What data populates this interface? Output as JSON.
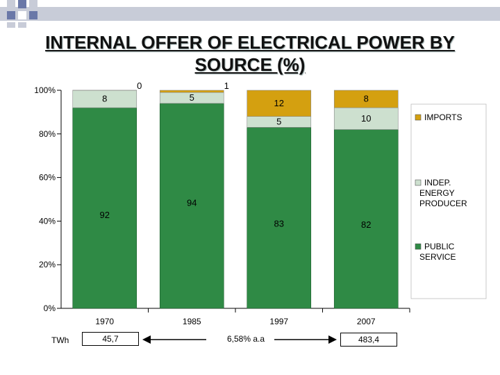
{
  "title": "INTERNAL OFFER OF ELECTRICAL POWER BY SOURCE  (%)",
  "colors": {
    "public_service": "#2f8a45",
    "indep_producer": "#cde0cf",
    "imports": "#d4a010",
    "plot_bg": "#ffffff",
    "header_band": "#c8ccd8"
  },
  "chart_data": {
    "type": "bar",
    "stacked": true,
    "categories": [
      "1970",
      "1985",
      "1997",
      "2007"
    ],
    "series": [
      {
        "name": "PUBLIC SERVICE",
        "values": [
          92,
          94,
          83,
          82
        ],
        "labels": [
          "92",
          "94",
          "83",
          "82"
        ]
      },
      {
        "name": "INDEP. ENERGY PRODUCER",
        "values": [
          8,
          5,
          5,
          10
        ],
        "labels": [
          "8",
          "5",
          "5",
          "10"
        ]
      },
      {
        "name": "IMPORTS",
        "values": [
          0,
          1,
          12,
          8
        ],
        "labels": [
          "0",
          "1",
          "12",
          "8"
        ]
      }
    ],
    "yticks": [
      "0%",
      "20%",
      "40%",
      "60%",
      "80%",
      "100%"
    ],
    "ylim": [
      0,
      100
    ],
    "legend": "right",
    "grid": false
  },
  "footer": {
    "unit_label": "TWh",
    "value_1970": "45,7",
    "growth_label": "6,58% a.a",
    "value_2007": "483,4"
  }
}
